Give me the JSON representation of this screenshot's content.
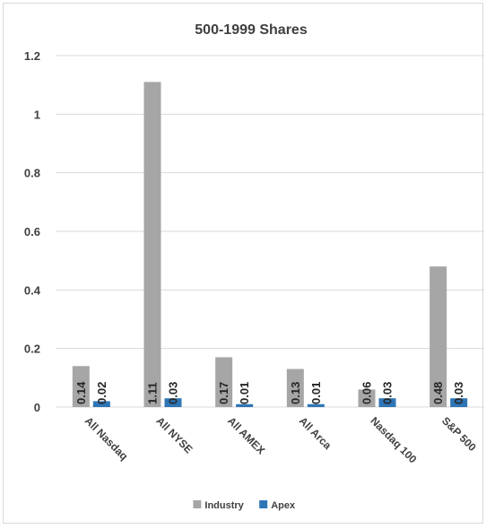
{
  "chart_data": {
    "type": "bar",
    "title": "500-1999 Shares",
    "xlabel": "",
    "ylabel": "",
    "categories": [
      "All Nasdaq",
      "All NYSE",
      "All AMEX",
      "All Arca",
      "Nasdaq 100",
      "S&P 500"
    ],
    "series": [
      {
        "name": "Industry",
        "values": [
          0.14,
          1.11,
          0.17,
          0.13,
          0.06,
          0.48
        ],
        "labels": [
          "0.14",
          "1.11",
          "0.17",
          "0.13",
          "0.06",
          "0.48"
        ],
        "color": "#a6a6a6"
      },
      {
        "name": "Apex",
        "values": [
          0.02,
          0.03,
          0.01,
          0.01,
          0.03,
          0.03
        ],
        "labels": [
          "0.02",
          "0.03",
          "0.01",
          "0.01",
          "0.03",
          "0.03"
        ],
        "color": "#2e75b6"
      }
    ],
    "ylim": [
      0,
      1.2
    ],
    "yticks": [
      "0",
      "0.2",
      "0.4",
      "0.6",
      "0.8",
      "1",
      "1.2"
    ],
    "grid": true,
    "legend_position": "bottom"
  }
}
